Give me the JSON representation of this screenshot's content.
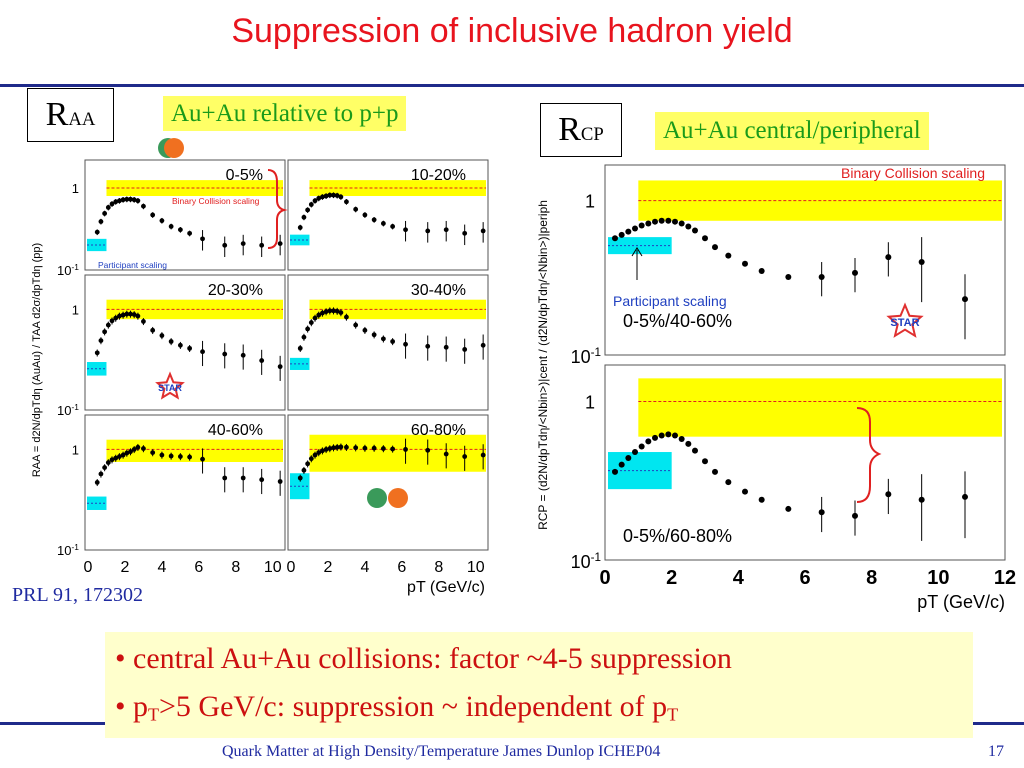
{
  "slide": {
    "title": "Suppression of inclusive hadron yield",
    "raa_label": "R",
    "raa_sub": "AA",
    "rcp_label": "R",
    "rcp_sub": "CP",
    "left_banner": "Au+Au relative to p+p",
    "right_banner": "Au+Au central/peripheral",
    "reference": "PRL 91, 172302",
    "bullet1": "• central Au+Au collisions: factor ~4-5 suppression",
    "bullet2_a": "• p",
    "bullet2_sub": "T",
    "bullet2_b": ">5 GeV/c: suppression ~ independent of p",
    "bullet2_sub2": "T",
    "footer": "Quark Matter at High Density/Temperature James Dunlop ICHEP04",
    "page_number": "17"
  },
  "colors": {
    "accent": "#e8141e",
    "band": "#ffff00",
    "participant_band": "#00e6f0",
    "rule": "#1f2a8a"
  },
  "chart_data": [
    {
      "type": "scatter",
      "panel": "RAA",
      "log_y": true,
      "ylim": [
        0.1,
        2.2
      ],
      "xlim": [
        0,
        10.5
      ],
      "xticks": [
        0,
        2,
        4,
        6,
        8,
        10
      ],
      "ytick_labels": [
        "1",
        "10-1"
      ],
      "xlabel": "pT (GeV/c)",
      "ylabel": "RAA = d2N/dpTdη (AuAu) / TAA d2σ/dpTdη (pp)",
      "binary_scaling_label": "Binary Collision scaling",
      "participant_scaling_label": "Participant scaling",
      "star_logo": "STAR",
      "panels": [
        {
          "label": "0-5%",
          "binary_band": [
            0.8,
            1.25
          ],
          "participant_band": [
            0.17,
            0.24
          ],
          "x": [
            0.5,
            0.7,
            0.9,
            1.1,
            1.3,
            1.5,
            1.7,
            1.9,
            2.1,
            2.3,
            2.5,
            2.7,
            3.0,
            3.5,
            4.0,
            4.5,
            5.0,
            5.5,
            6.2,
            7.4,
            8.4,
            9.4,
            10.4
          ],
          "y": [
            0.29,
            0.39,
            0.49,
            0.58,
            0.64,
            0.68,
            0.7,
            0.72,
            0.73,
            0.73,
            0.72,
            0.7,
            0.6,
            0.47,
            0.4,
            0.34,
            0.31,
            0.28,
            0.24,
            0.2,
            0.21,
            0.2,
            0.21
          ]
        },
        {
          "label": "10-20%",
          "binary_band": [
            0.8,
            1.25
          ],
          "participant_band": [
            0.2,
            0.27
          ],
          "x": [
            0.5,
            0.7,
            0.9,
            1.1,
            1.3,
            1.5,
            1.7,
            1.9,
            2.1,
            2.3,
            2.5,
            2.7,
            3.0,
            3.5,
            4.0,
            4.5,
            5.0,
            5.5,
            6.2,
            7.4,
            8.4,
            9.4,
            10.4
          ],
          "y": [
            0.33,
            0.44,
            0.54,
            0.63,
            0.7,
            0.75,
            0.78,
            0.8,
            0.82,
            0.82,
            0.81,
            0.78,
            0.68,
            0.55,
            0.47,
            0.41,
            0.37,
            0.34,
            0.31,
            0.3,
            0.31,
            0.28,
            0.3
          ]
        },
        {
          "label": "20-30%",
          "binary_band": [
            0.8,
            1.25
          ],
          "participant_band": [
            0.22,
            0.3
          ],
          "x": [
            0.5,
            0.7,
            0.9,
            1.1,
            1.3,
            1.5,
            1.7,
            1.9,
            2.1,
            2.3,
            2.5,
            2.7,
            3.0,
            3.5,
            4.0,
            4.5,
            5.0,
            5.5,
            6.2,
            7.4,
            8.4,
            9.4,
            10.4
          ],
          "y": [
            0.37,
            0.49,
            0.6,
            0.7,
            0.77,
            0.82,
            0.86,
            0.88,
            0.9,
            0.9,
            0.89,
            0.86,
            0.76,
            0.62,
            0.55,
            0.48,
            0.44,
            0.41,
            0.38,
            0.36,
            0.35,
            0.31,
            0.27
          ]
        },
        {
          "label": "30-40%",
          "binary_band": [
            0.8,
            1.25
          ],
          "participant_band": [
            0.25,
            0.33
          ],
          "x": [
            0.5,
            0.7,
            0.9,
            1.1,
            1.3,
            1.5,
            1.7,
            1.9,
            2.1,
            2.3,
            2.5,
            2.7,
            3.0,
            3.5,
            4.0,
            4.5,
            5.0,
            5.5,
            6.2,
            7.4,
            8.4,
            9.4,
            10.4
          ],
          "y": [
            0.41,
            0.53,
            0.64,
            0.74,
            0.82,
            0.88,
            0.92,
            0.95,
            0.97,
            0.97,
            0.96,
            0.93,
            0.84,
            0.7,
            0.62,
            0.56,
            0.51,
            0.48,
            0.45,
            0.43,
            0.42,
            0.4,
            0.44
          ]
        },
        {
          "label": "40-60%",
          "binary_band": [
            0.75,
            1.25
          ],
          "participant_band": [
            0.25,
            0.34
          ],
          "x": [
            0.5,
            0.7,
            0.9,
            1.1,
            1.3,
            1.5,
            1.7,
            1.9,
            2.1,
            2.3,
            2.5,
            2.7,
            3.0,
            3.5,
            4.0,
            4.5,
            5.0,
            5.5,
            6.2,
            7.4,
            8.4,
            9.4,
            10.4
          ],
          "y": [
            0.47,
            0.57,
            0.66,
            0.74,
            0.79,
            0.82,
            0.85,
            0.88,
            0.92,
            0.95,
            1.0,
            1.05,
            1.02,
            0.93,
            0.88,
            0.86,
            0.85,
            0.84,
            0.8,
            0.52,
            0.52,
            0.5,
            0.48
          ]
        },
        {
          "label": "60-80%",
          "binary_band": [
            0.6,
            1.4
          ],
          "participant_band": [
            0.32,
            0.58
          ],
          "x": [
            0.5,
            0.7,
            0.9,
            1.1,
            1.3,
            1.5,
            1.7,
            1.9,
            2.1,
            2.3,
            2.5,
            2.7,
            3.0,
            3.5,
            4.0,
            4.5,
            5.0,
            5.5,
            6.2,
            7.4,
            8.4,
            9.4,
            10.4
          ],
          "y": [
            0.52,
            0.62,
            0.72,
            0.81,
            0.88,
            0.93,
            0.97,
            1.0,
            1.02,
            1.04,
            1.05,
            1.06,
            1.05,
            1.04,
            1.03,
            1.03,
            1.02,
            1.01,
            1.0,
            0.98,
            0.9,
            0.85,
            0.88
          ]
        }
      ]
    },
    {
      "type": "scatter",
      "panel": "RCP",
      "log_y": true,
      "xlim": [
        0,
        12
      ],
      "xticks": [
        0,
        2,
        4,
        6,
        8,
        10,
        12
      ],
      "ytick_labels": [
        "1",
        "10-1"
      ],
      "xlabel": "pT (GeV/c)",
      "ylabel": "RCP = (d2N/dpTdη/<Nbin>)|cent / (d2N/dpTdη/<Nbin>)|periph",
      "binary_scaling_label": "Binary Collision scaling",
      "participant_scaling_label": "Participant scaling",
      "star_logo": "STAR",
      "panels": [
        {
          "label": "0-5%/40-60%",
          "ylim": [
            0.1,
            1.7
          ],
          "binary_band": [
            0.74,
            1.35
          ],
          "participant_band": [
            0.45,
            0.58
          ],
          "x": [
            0.3,
            0.5,
            0.7,
            0.9,
            1.1,
            1.3,
            1.5,
            1.7,
            1.9,
            2.1,
            2.3,
            2.5,
            2.7,
            3.0,
            3.3,
            3.7,
            4.2,
            4.7,
            5.5,
            6.5,
            7.5,
            8.5,
            9.5,
            10.8
          ],
          "y": [
            0.57,
            0.6,
            0.63,
            0.66,
            0.69,
            0.71,
            0.73,
            0.74,
            0.74,
            0.73,
            0.71,
            0.68,
            0.64,
            0.57,
            0.5,
            0.44,
            0.39,
            0.35,
            0.32,
            0.32,
            0.34,
            0.43,
            0.4,
            0.23
          ]
        },
        {
          "label": "0-5%/60-80%",
          "ylim": [
            0.1,
            1.7
          ],
          "binary_band": [
            0.6,
            1.4
          ],
          "participant_band": [
            0.28,
            0.48
          ],
          "x": [
            0.3,
            0.5,
            0.7,
            0.9,
            1.1,
            1.3,
            1.5,
            1.7,
            1.9,
            2.1,
            2.3,
            2.5,
            2.7,
            3.0,
            3.3,
            3.7,
            4.2,
            4.7,
            5.5,
            6.5,
            7.5,
            8.5,
            9.5,
            10.8
          ],
          "y": [
            0.36,
            0.4,
            0.44,
            0.48,
            0.52,
            0.56,
            0.59,
            0.61,
            0.62,
            0.61,
            0.58,
            0.54,
            0.49,
            0.42,
            0.36,
            0.31,
            0.27,
            0.24,
            0.21,
            0.2,
            0.19,
            0.26,
            0.24,
            0.25
          ]
        }
      ]
    }
  ]
}
